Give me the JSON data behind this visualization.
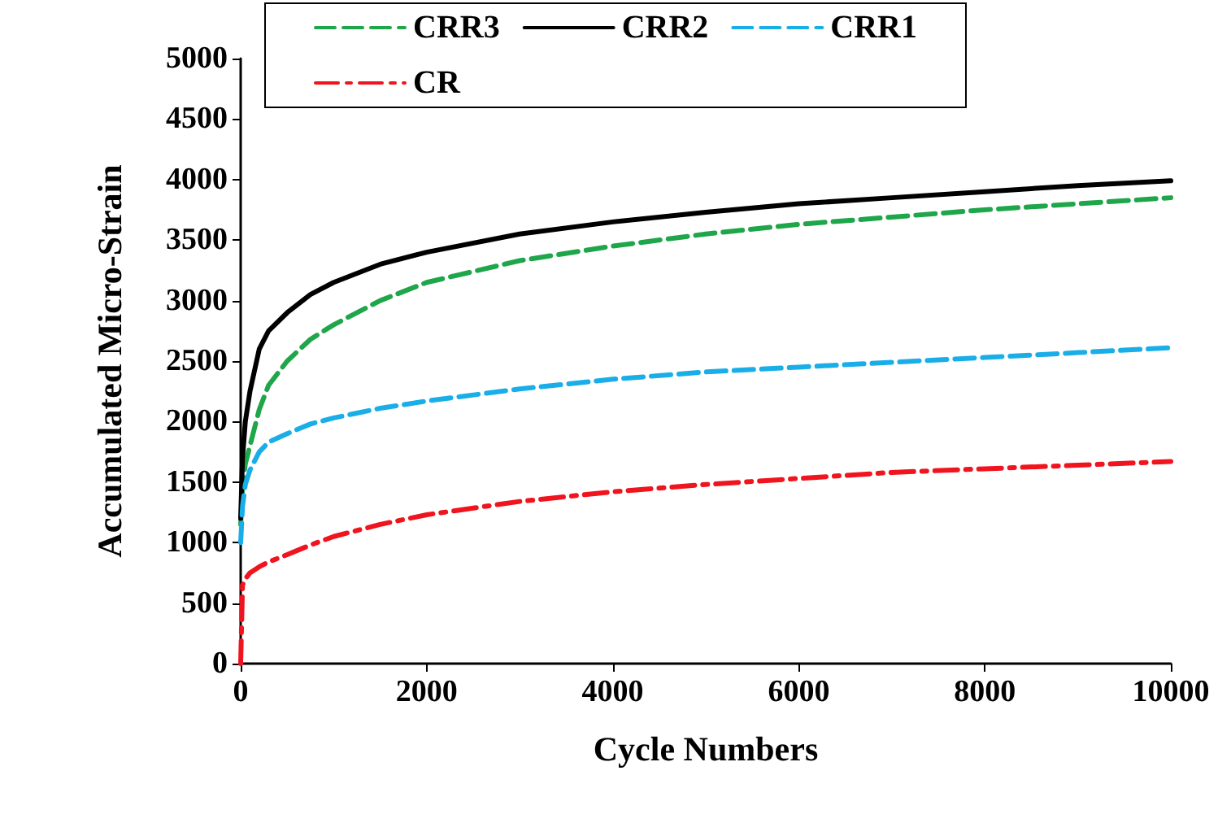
{
  "chart_data": {
    "type": "line",
    "xlabel": "Cycle Numbers",
    "ylabel": "Accumulated Micro-Strain",
    "xlim": [
      0,
      10000
    ],
    "xticks": [
      0,
      2000,
      4000,
      6000,
      8000,
      10000
    ],
    "ylim": [
      0,
      5000
    ],
    "yticks": [
      0,
      500,
      1000,
      1500,
      2000,
      2500,
      3000,
      3500,
      4000,
      4500,
      5000
    ],
    "grid": false,
    "legend": "top",
    "marker": "none",
    "x": [
      0,
      20,
      50,
      100,
      200,
      300,
      500,
      750,
      1000,
      1500,
      2000,
      3000,
      4000,
      5000,
      6000,
      7000,
      8000,
      9000,
      10000
    ],
    "series": [
      {
        "name": "CRR3",
        "color": "#1fa64a",
        "line_style": "dashed",
        "values": [
          1150,
          1450,
          1650,
          1800,
          2100,
          2300,
          2500,
          2680,
          2800,
          3000,
          3150,
          3330,
          3450,
          3550,
          3630,
          3690,
          3750,
          3800,
          3850
        ]
      },
      {
        "name": "CRR2",
        "color": "#000000",
        "line_style": "solid",
        "values": [
          1200,
          1700,
          2000,
          2250,
          2600,
          2750,
          2900,
          3050,
          3150,
          3300,
          3400,
          3550,
          3650,
          3730,
          3800,
          3850,
          3900,
          3950,
          3990
        ]
      },
      {
        "name": "CRR1",
        "color": "#1aaee8",
        "line_style": "dashed",
        "values": [
          1000,
          1300,
          1480,
          1600,
          1750,
          1830,
          1900,
          1980,
          2030,
          2110,
          2170,
          2270,
          2350,
          2410,
          2450,
          2490,
          2530,
          2570,
          2610
        ]
      },
      {
        "name": "CR",
        "color": "#f0141e",
        "line_style": "dashdot",
        "values": [
          0,
          650,
          700,
          750,
          800,
          840,
          900,
          980,
          1050,
          1150,
          1230,
          1340,
          1420,
          1480,
          1530,
          1580,
          1610,
          1640,
          1670
        ]
      }
    ]
  }
}
